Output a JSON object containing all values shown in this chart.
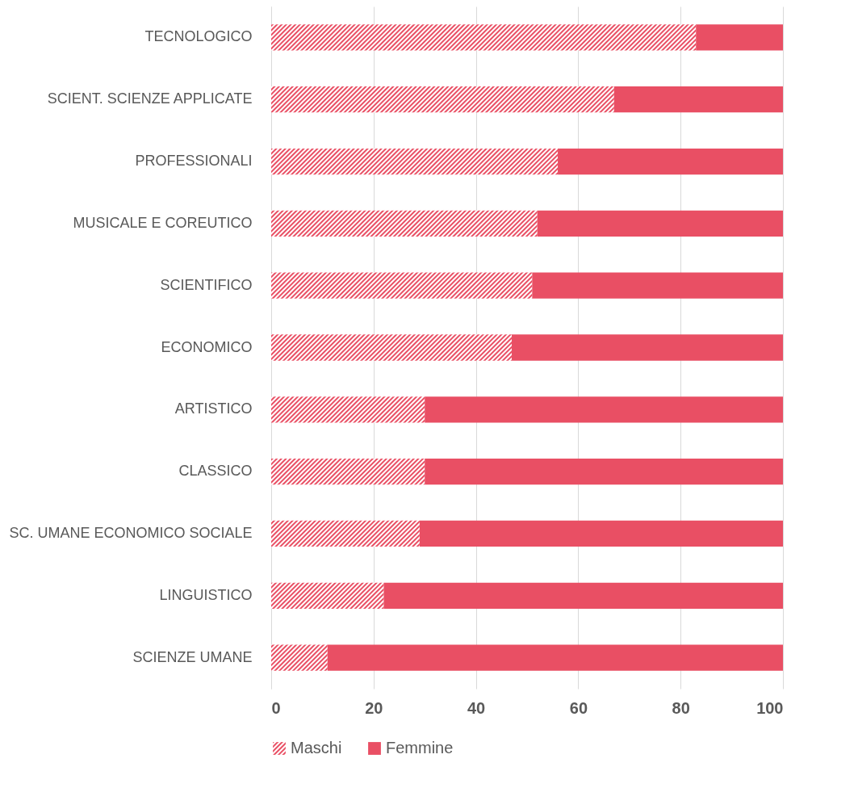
{
  "chart_data": {
    "type": "bar",
    "orientation": "horizontal",
    "stacked": true,
    "categories": [
      "TECNOLOGICO",
      "SCIENT. SCIENZE APPLICATE",
      "PROFESSIONALI",
      "MUSICALE E COREUTICO",
      "SCIENTIFICO",
      "ECONOMICO",
      "ARTISTICO",
      "CLASSICO",
      "SC. UMANE ECONOMICO SOCIALE",
      "LINGUISTICO",
      "SCIENZE UMANE"
    ],
    "series": [
      {
        "name": "Maschi",
        "color": "#e94f64",
        "values": [
          83,
          67,
          56,
          52,
          51,
          47,
          30,
          30,
          29,
          22,
          11
        ]
      },
      {
        "name": "Femmine",
        "color": "#e94f64",
        "values": [
          17,
          33,
          44,
          48,
          49,
          53,
          70,
          70,
          71,
          78,
          89
        ]
      }
    ],
    "xlim": [
      0,
      100
    ],
    "xticks": [
      0,
      20,
      40,
      60,
      80,
      100
    ],
    "grid": "x",
    "legend": "bottom"
  }
}
